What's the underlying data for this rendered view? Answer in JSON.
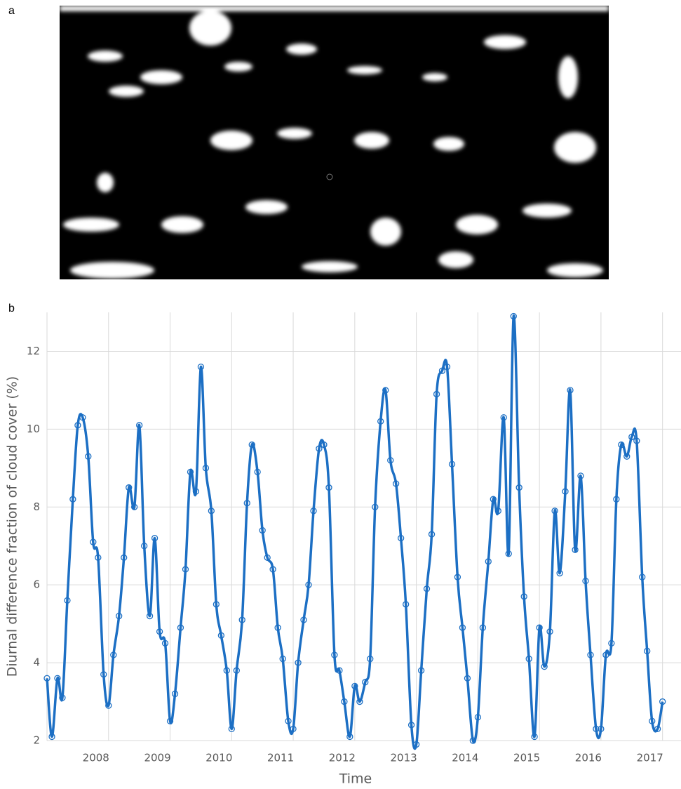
{
  "panels": {
    "a": "a",
    "b": "b"
  },
  "chart_data": {
    "type": "line",
    "xlabel": "Time",
    "ylabel": "Diurnal difference fraction of cloud cover (%)",
    "x": [
      2007,
      2007.08,
      2007.17,
      2007.25,
      2007.33,
      2007.42,
      2007.5,
      2007.58,
      2007.67,
      2007.75,
      2007.83,
      2007.92,
      2008,
      2008.08,
      2008.17,
      2008.25,
      2008.33,
      2008.42,
      2008.5,
      2008.58,
      2008.67,
      2008.75,
      2008.83,
      2008.92,
      2009,
      2009.08,
      2009.17,
      2009.25,
      2009.33,
      2009.42,
      2009.5,
      2009.58,
      2009.67,
      2009.75,
      2009.83,
      2009.92,
      2010,
      2010.08,
      2010.17,
      2010.25,
      2010.33,
      2010.42,
      2010.5,
      2010.58,
      2010.67,
      2010.75,
      2010.83,
      2010.92,
      2011,
      2011.08,
      2011.17,
      2011.25,
      2011.33,
      2011.42,
      2011.5,
      2011.58,
      2011.67,
      2011.75,
      2011.83,
      2011.92,
      2012,
      2012.08,
      2012.17,
      2012.25,
      2012.33,
      2012.42,
      2012.5,
      2012.58,
      2012.67,
      2012.75,
      2012.83,
      2012.92,
      2013,
      2013.08,
      2013.17,
      2013.25,
      2013.33,
      2013.42,
      2013.5,
      2013.58,
      2013.67,
      2013.75,
      2013.83,
      2013.92,
      2014,
      2014.08,
      2014.17,
      2014.25,
      2014.33,
      2014.42,
      2014.5,
      2014.58,
      2014.67,
      2014.75,
      2014.83,
      2014.92,
      2015,
      2015.08,
      2015.17,
      2015.25,
      2015.33,
      2015.42,
      2015.5,
      2015.58,
      2015.67,
      2015.75,
      2015.83,
      2015.92,
      2016,
      2016.08,
      2016.17,
      2016.25,
      2016.33,
      2016.42,
      2016.5,
      2016.58,
      2016.67,
      2016.75,
      2016.83,
      2016.92,
      2017
    ],
    "series": [
      {
        "color": "#1c6fc4",
        "values": [
          3.6,
          2.1,
          3.6,
          3.1,
          5.6,
          8.2,
          10.1,
          10.3,
          9.3,
          7.1,
          6.7,
          3.7,
          2.9,
          4.2,
          5.2,
          6.7,
          8.5,
          8.0,
          10.1,
          7.0,
          5.2,
          7.2,
          4.8,
          4.5,
          2.5,
          3.2,
          4.9,
          6.4,
          8.9,
          8.4,
          11.6,
          9.0,
          7.9,
          5.5,
          4.7,
          3.8,
          2.3,
          3.8,
          5.1,
          8.1,
          9.6,
          8.9,
          7.4,
          6.7,
          6.4,
          4.9,
          4.1,
          2.5,
          2.3,
          4.0,
          5.1,
          6.0,
          7.9,
          9.5,
          9.6,
          8.5,
          4.2,
          3.8,
          3.0,
          2.1,
          3.4,
          3.0,
          3.5,
          4.1,
          8.0,
          10.2,
          11.0,
          9.2,
          8.6,
          7.2,
          5.5,
          2.4,
          1.9,
          3.8,
          5.9,
          7.3,
          10.9,
          11.5,
          11.6,
          9.1,
          6.2,
          4.9,
          3.6,
          2.0,
          2.6,
          4.9,
          6.6,
          8.2,
          7.9,
          10.3,
          6.8,
          12.9,
          8.5,
          5.7,
          4.1,
          2.1,
          4.9,
          3.9,
          4.8,
          7.9,
          6.3,
          8.4,
          11.0,
          6.9,
          8.8,
          6.1,
          4.2,
          2.3,
          2.3,
          4.2,
          4.5,
          8.2,
          9.6,
          9.3,
          9.8,
          9.7,
          6.2,
          4.3,
          2.5,
          2.3,
          3.0
        ]
      }
    ],
    "xlim": [
      2007,
      2017.3
    ],
    "ylim": [
      2,
      13
    ],
    "xticks": [
      2008,
      2009,
      2010,
      2011,
      2012,
      2013,
      2014,
      2015,
      2016,
      2017
    ],
    "yticks": [
      2,
      4,
      6,
      8,
      10,
      12
    ],
    "grid": true
  }
}
